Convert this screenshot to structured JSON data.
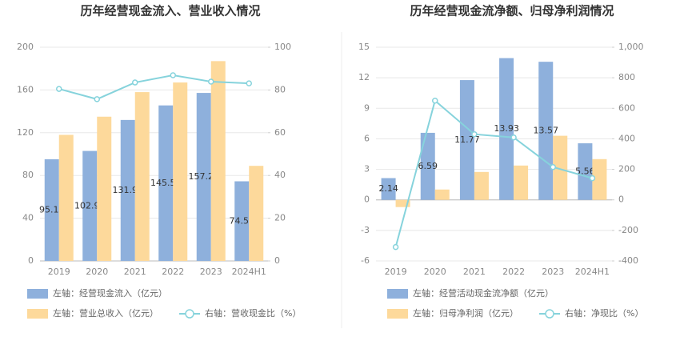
{
  "chart_data": [
    {
      "type": "bar",
      "title": "历年经营现金流入、营业收入情况",
      "categories": [
        "2019",
        "2020",
        "2021",
        "2022",
        "2023",
        "2024H1"
      ],
      "series": [
        {
          "name": "左轴：经营现金流入（亿元）",
          "color": "#8eb0dc",
          "values": [
            95.14,
            102.94,
            131.94,
            145.55,
            157.24,
            74.53
          ],
          "show_labels": true
        },
        {
          "name": "左轴：营业总收入（亿元）",
          "color": "#fdd99b",
          "values": [
            118,
            135,
            158,
            167,
            187,
            89
          ]
        },
        {
          "name": "右轴：营收现金比（%）",
          "color": "#86d3dc",
          "type": "line",
          "axis": "y2",
          "values": [
            80.5,
            75.7,
            83.5,
            86.9,
            83.9,
            83.1
          ]
        }
      ],
      "ylim": [
        0,
        200
      ],
      "yticks": [
        0,
        40,
        80,
        120,
        160,
        200
      ],
      "y2lim": [
        0,
        100
      ],
      "y2ticks": [
        0,
        20,
        40,
        60,
        80,
        100
      ],
      "grid": true
    },
    {
      "type": "bar",
      "title": "历年经营现金流净额、归母净利润情况",
      "categories": [
        "2019",
        "2020",
        "2021",
        "2022",
        "2023",
        "2024H1"
      ],
      "series": [
        {
          "name": "左轴：经营活动现金流净额（亿元）",
          "color": "#8eb0dc",
          "values": [
            2.14,
            6.59,
            11.77,
            13.93,
            13.57,
            5.56
          ],
          "show_labels": true
        },
        {
          "name": "左轴：归母净利润（亿元）",
          "color": "#fdd99b",
          "axis": "y2",
          "values": [
            -47,
            68,
            183,
            225,
            420,
            267
          ]
        },
        {
          "name": "右轴：净现比（%）",
          "color": "#86d3dc",
          "type": "line",
          "axis": "y2",
          "values": [
            -309,
            650,
            430,
            409,
            215,
            142
          ]
        }
      ],
      "ylim": [
        -6,
        15
      ],
      "yticks": [
        -6,
        -3,
        0,
        3,
        6,
        9,
        12,
        15
      ],
      "y2lim": [
        -400,
        1000
      ],
      "y2ticks": [
        -400,
        -200,
        0,
        200,
        400,
        600,
        800,
        {
          "value": 1000,
          "label": "1,000"
        }
      ],
      "grid": true
    }
  ]
}
